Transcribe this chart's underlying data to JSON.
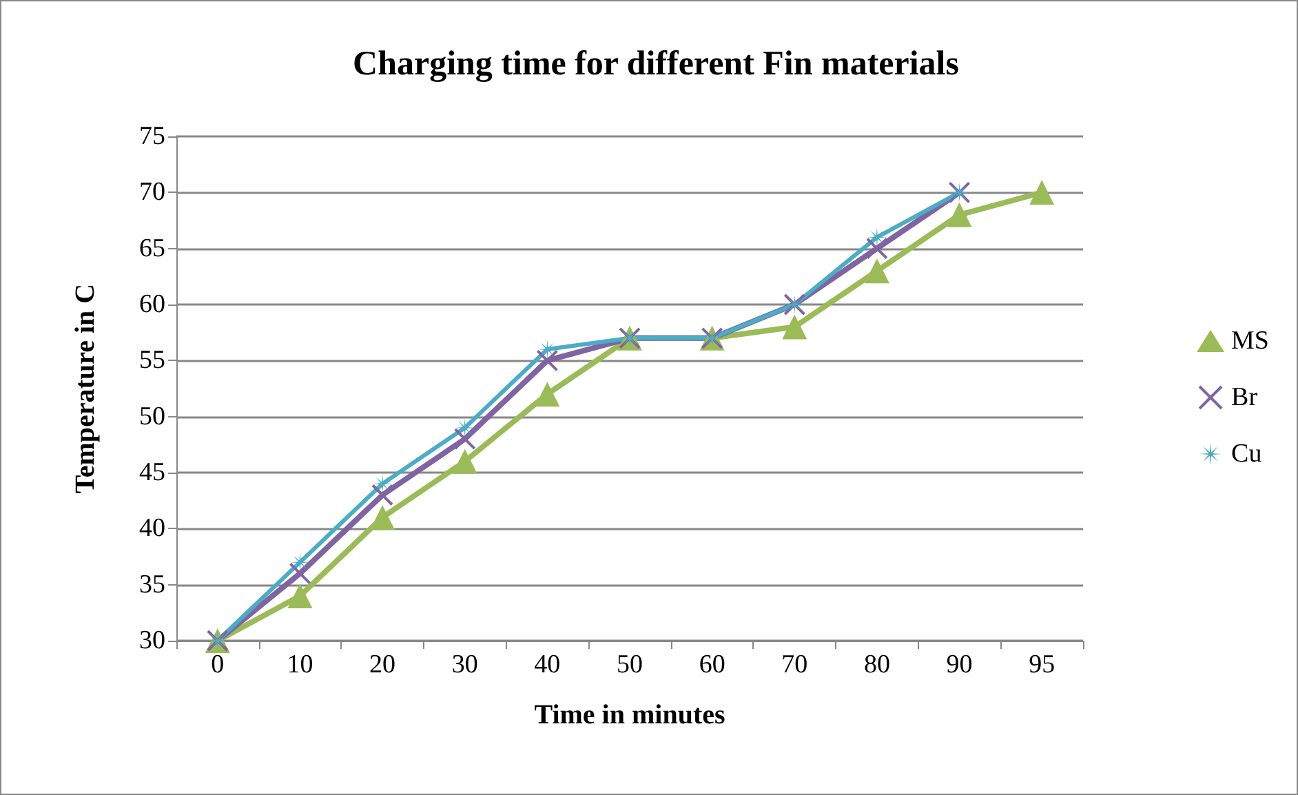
{
  "chart_data": {
    "type": "line",
    "title": "Charging time for different Fin materials",
    "xlabel": "Time in minutes",
    "ylabel": "Temperature in C",
    "categories": [
      "0",
      "10",
      "20",
      "30",
      "40",
      "50",
      "60",
      "70",
      "80",
      "90",
      "95"
    ],
    "series": [
      {
        "name": "MS",
        "color": "#9bbb59",
        "marker": "triangle",
        "values": [
          30,
          34,
          41,
          46,
          52,
          57,
          57,
          58,
          63,
          68,
          70
        ]
      },
      {
        "name": "Br",
        "color": "#8064a2",
        "marker": "cross",
        "values": [
          30,
          36,
          43,
          48,
          55,
          57,
          57,
          60,
          65,
          70,
          null
        ]
      },
      {
        "name": "Cu",
        "color": "#4bacc6",
        "marker": "star",
        "values": [
          30,
          37,
          44,
          49,
          56,
          57,
          57,
          60,
          66,
          70,
          null
        ]
      }
    ],
    "ylim": [
      30,
      75
    ],
    "yticks": [
      30,
      35,
      40,
      45,
      50,
      55,
      60,
      65,
      70,
      75
    ],
    "grid": "y",
    "legend": "right"
  }
}
